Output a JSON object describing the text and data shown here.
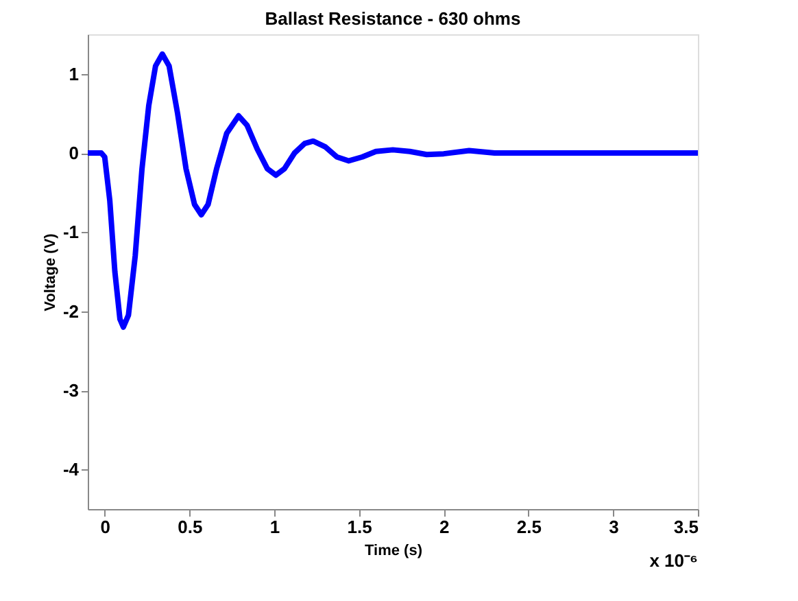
{
  "chart_data": {
    "type": "line",
    "title": "Ballast Resistance - 630 ohms",
    "xlabel": "Time (s)",
    "ylabel": "Voltage (V)",
    "annotations": [
      "x 10⁻⁶"
    ],
    "xlim": [
      -0.1,
      3.5
    ],
    "xticks": [
      0,
      0.5,
      1,
      1.5,
      2,
      2.5,
      3,
      3.5
    ],
    "ylim": [
      -4.5,
      1.5
    ],
    "yticks": [
      -4,
      -3,
      -2,
      -1,
      0,
      1
    ],
    "grid": false,
    "legend": false,
    "marker": "none",
    "line_style": "solid",
    "x": [
      -0.1,
      -0.02,
      0.0,
      0.03,
      0.06,
      0.09,
      0.11,
      0.14,
      0.18,
      0.22,
      0.26,
      0.3,
      0.34,
      0.38,
      0.43,
      0.48,
      0.53,
      0.57,
      0.61,
      0.66,
      0.72,
      0.79,
      0.84,
      0.9,
      0.96,
      1.01,
      1.06,
      1.12,
      1.18,
      1.23,
      1.3,
      1.37,
      1.44,
      1.52,
      1.6,
      1.7,
      1.8,
      1.9,
      2.0,
      2.15,
      2.3,
      2.6,
      3.0,
      3.5
    ],
    "series": [
      {
        "color": "#0000ff",
        "values": [
          0,
          0,
          -0.05,
          -0.6,
          -1.5,
          -2.1,
          -2.2,
          -2.05,
          -1.3,
          -0.2,
          0.6,
          1.1,
          1.25,
          1.1,
          0.5,
          -0.2,
          -0.65,
          -0.78,
          -0.65,
          -0.2,
          0.25,
          0.47,
          0.35,
          0.05,
          -0.2,
          -0.28,
          -0.2,
          0.0,
          0.12,
          0.15,
          0.08,
          -0.05,
          -0.1,
          -0.05,
          0.02,
          0.04,
          0.02,
          -0.02,
          -0.01,
          0.03,
          0.0,
          0,
          0,
          0
        ]
      }
    ]
  }
}
